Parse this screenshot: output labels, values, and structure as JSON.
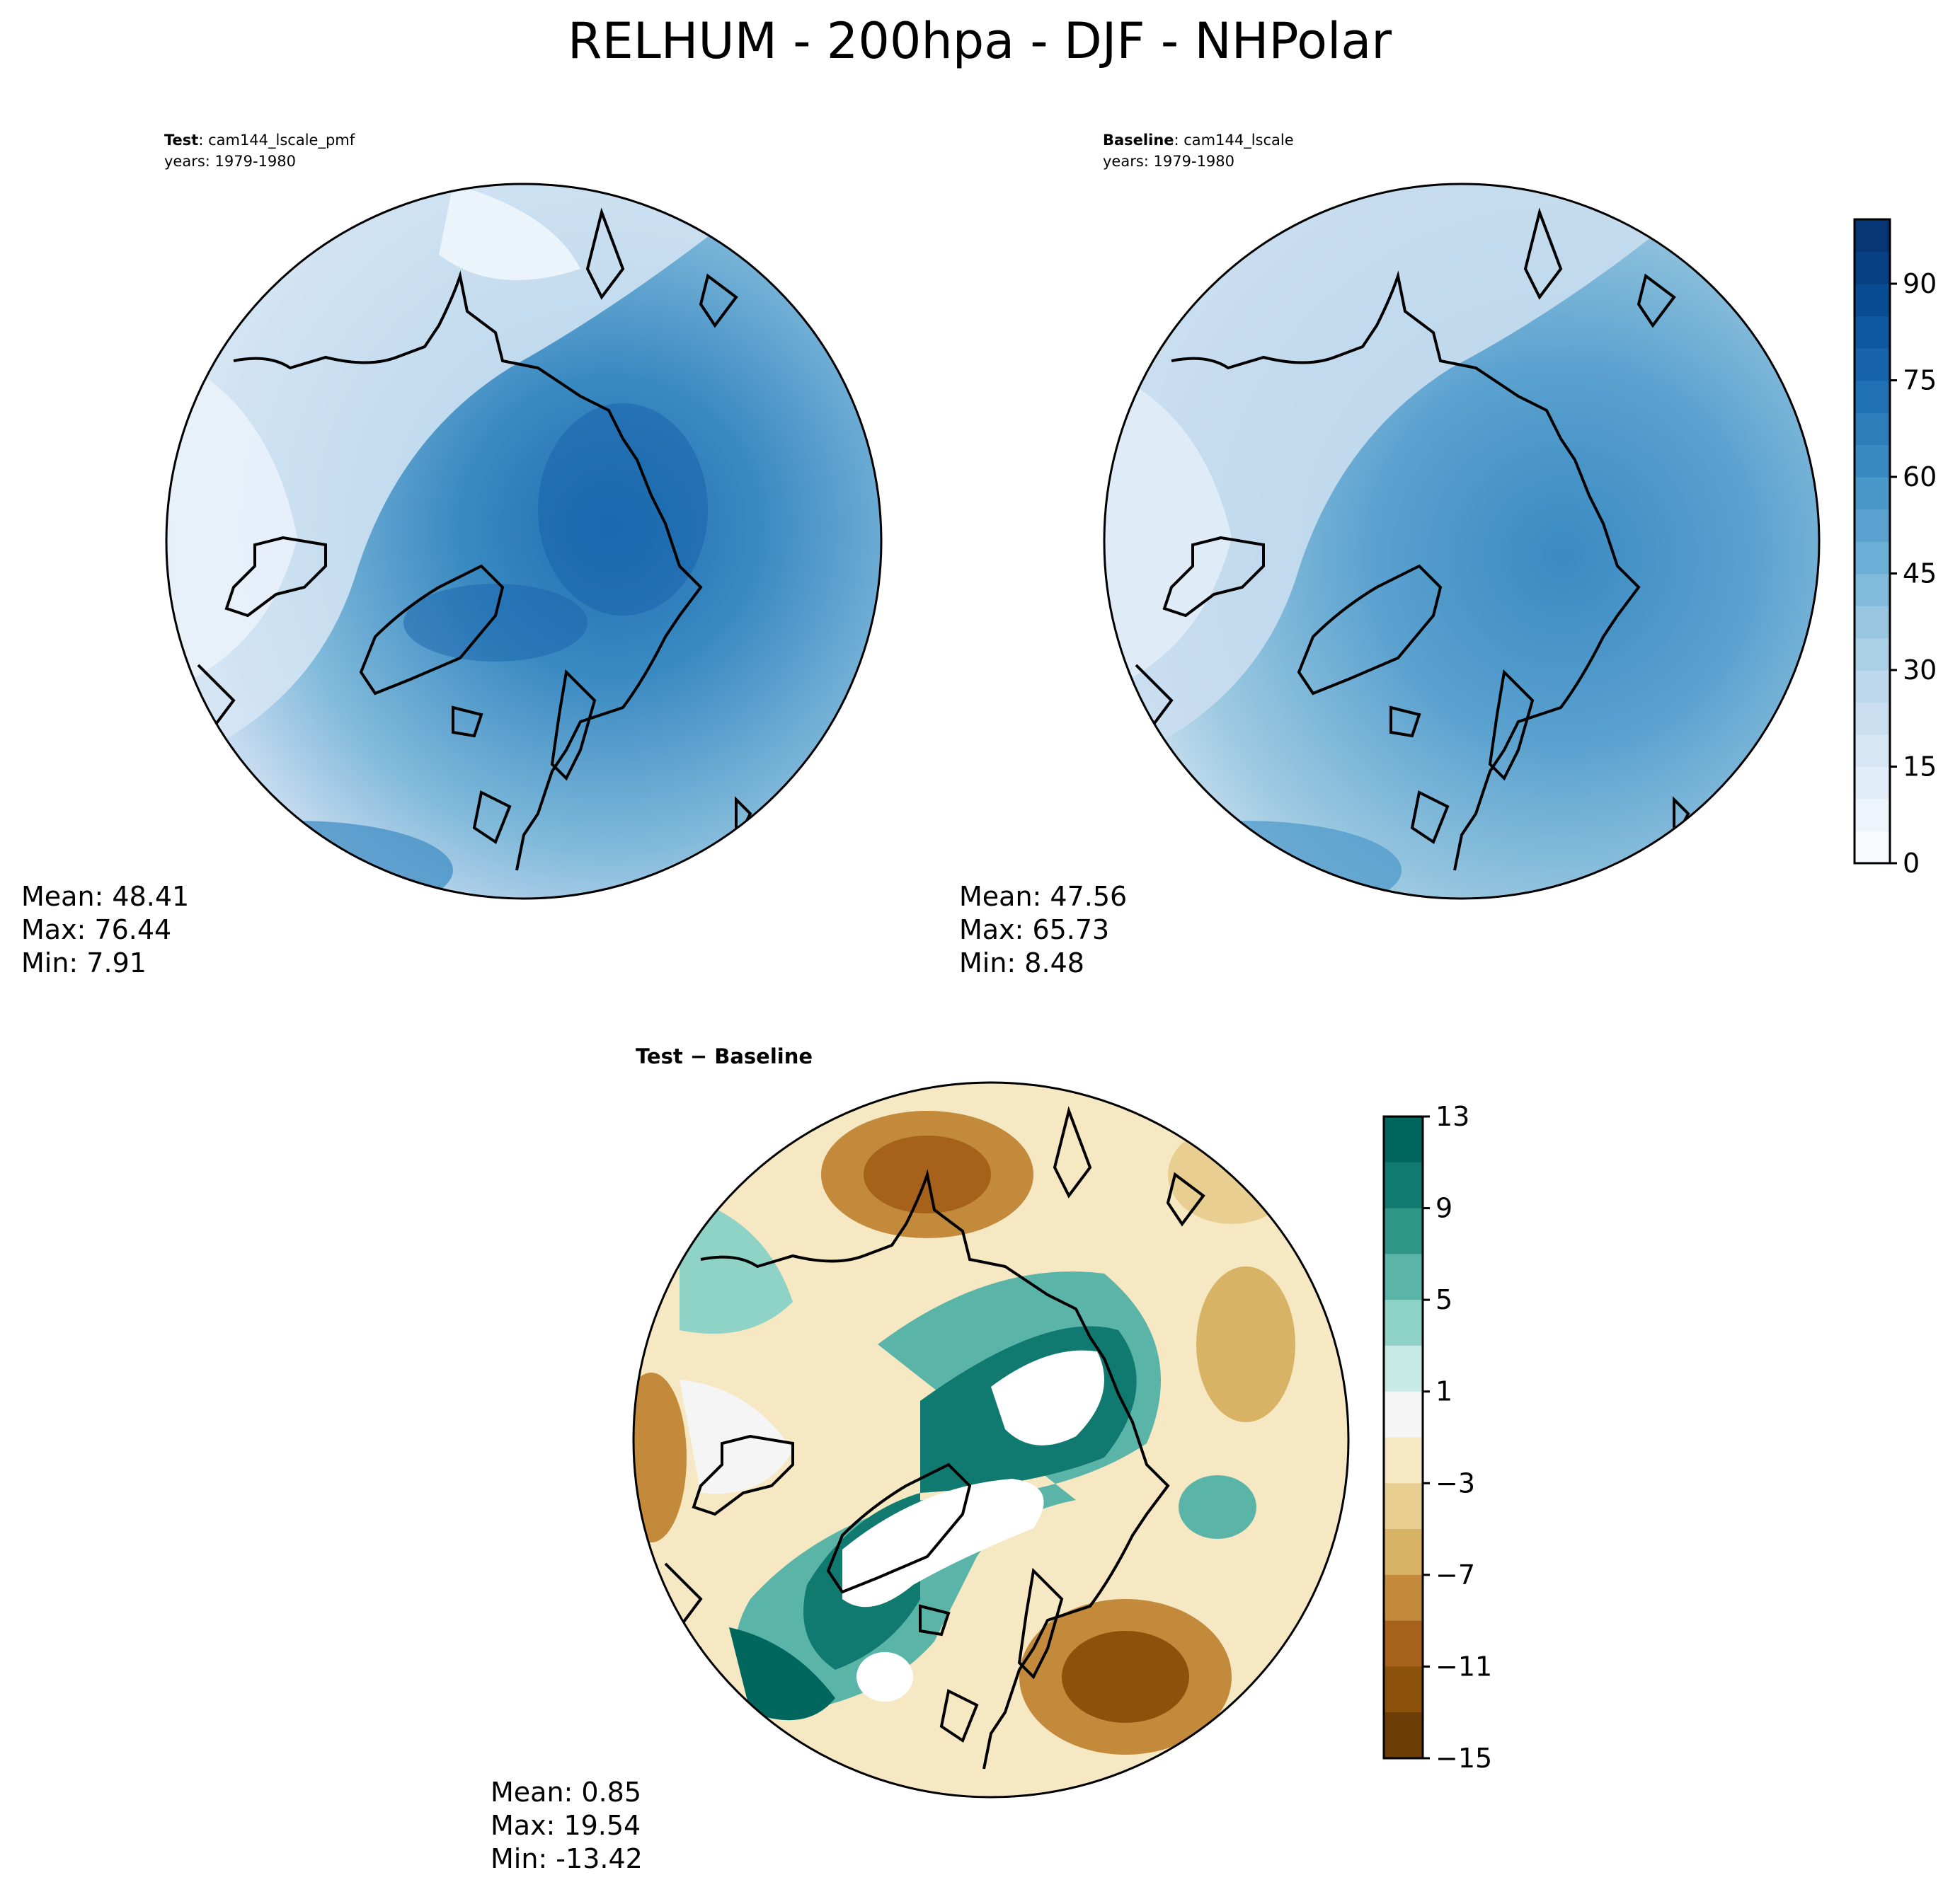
{
  "title": "RELHUM - 200hpa - DJF - NHPolar",
  "panels": {
    "test": {
      "label_bold": "Test",
      "label_rest": ": cam144_lscale_pmf",
      "years": "years: 1979-1980",
      "mean": "Mean: 48.41",
      "max": "Max: 76.44",
      "min": "Min:  7.91"
    },
    "baseline": {
      "label_bold": "Baseline",
      "label_rest": ": cam144_lscale",
      "years": "years: 1979-1980",
      "mean": "Mean: 47.56",
      "max": "Max: 65.73",
      "min": "Min:  8.48"
    },
    "diff": {
      "label": "Test − Baseline",
      "mean": "Mean:  0.85",
      "max": "Max: 19.54",
      "min": "Min: -13.42"
    }
  },
  "colorbars": {
    "main": {
      "ticks": [
        "0",
        "15",
        "30",
        "45",
        "60",
        "75",
        "90"
      ],
      "colors": [
        "#f7fbff",
        "#edf4fb",
        "#e1edf8",
        "#d7e6f5",
        "#cadef0",
        "#bdd7ec",
        "#abd0e6",
        "#98c6e1",
        "#82badb",
        "#6baed6",
        "#5aa1cf",
        "#4a97c9",
        "#3a8ac2",
        "#2d7dbb",
        "#2070b4",
        "#1764ab",
        "#0e58a2",
        "#084c94",
        "#084084",
        "#083674"
      ]
    },
    "diff": {
      "ticks": [
        "13",
        "9",
        "5",
        "1",
        "−3",
        "−7",
        "−11",
        "−15"
      ],
      "colors": [
        "#01665e",
        "#117a70",
        "#2f9688",
        "#5ab4a8",
        "#8fd2c6",
        "#c7eae5",
        "#f5f5f5",
        "#f6e8c3",
        "#e8ce91",
        "#d8b365",
        "#c38a3c",
        "#a6611a",
        "#8c510a",
        "#6d3d08"
      ]
    }
  },
  "chart_data": [
    {
      "type": "heatmap",
      "title": "Test: cam144_lscale_pmf",
      "subtitle": "years: 1979-1980",
      "projection": "north polar stereographic",
      "colorbar_range": [
        0,
        100
      ],
      "colorbar_ticks": [
        0,
        15,
        30,
        45,
        60,
        75,
        90
      ],
      "stats": {
        "mean": 48.41,
        "max": 76.44,
        "min": 7.91
      }
    },
    {
      "type": "heatmap",
      "title": "Baseline: cam144_lscale",
      "subtitle": "years: 1979-1980",
      "projection": "north polar stereographic",
      "colorbar_range": [
        0,
        100
      ],
      "colorbar_ticks": [
        0,
        15,
        30,
        45,
        60,
        75,
        90
      ],
      "stats": {
        "mean": 47.56,
        "max": 65.73,
        "min": 8.48
      }
    },
    {
      "type": "heatmap",
      "title": "Test − Baseline",
      "projection": "north polar stereographic",
      "colorbar_range": [
        -15,
        13
      ],
      "colorbar_ticks": [
        -15,
        -11,
        -7,
        -3,
        1,
        5,
        9,
        13
      ],
      "stats": {
        "mean": 0.85,
        "max": 19.54,
        "min": -13.42
      }
    }
  ]
}
